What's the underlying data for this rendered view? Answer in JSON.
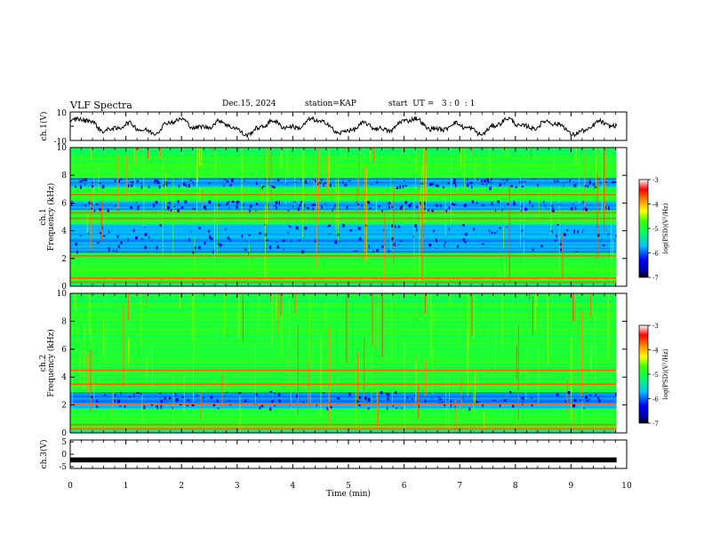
{
  "header": {
    "title": "VLF Spectra",
    "date": "Dec.15, 2024",
    "station": "station=KAP",
    "start_ut": "start  UT =   3 : 0  : 1"
  },
  "chart_data": [
    {
      "type": "line",
      "panel": "ch1-waveform",
      "ylabel": "ch.1(V)",
      "ylim": [
        -10,
        10
      ],
      "yticks": [
        "10",
        "-10"
      ],
      "xlim": [
        0,
        10
      ],
      "x_end": 9.82,
      "description_values": "noisy waveform oscillating roughly between -6 and +6 V"
    },
    {
      "type": "heatmap",
      "panel": "ch1-spectrogram",
      "ylabel": "ch.1\nFrequency (kHz)",
      "ylim": [
        0,
        10
      ],
      "yticks": [
        "0",
        "2",
        "4",
        "6",
        "8",
        "10"
      ],
      "xlim": [
        0,
        10
      ],
      "x_end": 9.82,
      "colorbar": {
        "label": "log(PSD)(V²/Hz)",
        "range": [
          -7,
          -3
        ],
        "ticks": [
          "-3",
          "-4",
          "-5",
          "-6",
          "-7"
        ]
      },
      "hot_lines_khz": [
        0.3,
        0.6,
        2.2,
        4.9,
        5.3,
        6.6
      ],
      "cool_bands_khz": [
        [
          2.5,
          4.5
        ],
        [
          5.5,
          6.2
        ],
        [
          7.2,
          7.8
        ]
      ]
    },
    {
      "type": "heatmap",
      "panel": "ch2-spectrogram",
      "ylabel": "ch.2\nFrequency (kHz)",
      "ylim": [
        0,
        10
      ],
      "yticks": [
        "0",
        "2",
        "4",
        "6",
        "8",
        "10"
      ],
      "xlim": [
        0,
        10
      ],
      "x_end": 9.82,
      "colorbar": {
        "label": "log(PSD)(V²/Hz)",
        "range": [
          -7,
          -3
        ],
        "ticks": [
          "-3",
          "-4",
          "-5",
          "-6",
          "-7"
        ]
      },
      "hot_lines_khz": [
        0.3,
        0.6,
        2.1,
        3.5,
        4.5
      ],
      "cool_bands_khz": [
        [
          1.8,
          3.0
        ]
      ]
    },
    {
      "type": "line",
      "panel": "ch3-waveform",
      "ylabel": "ch.3(V)",
      "ylim": [
        -5,
        5
      ],
      "yticks": [
        "5",
        "0",
        "-5"
      ],
      "xlim": [
        0,
        10
      ],
      "x_end": 9.82,
      "values_note": "flat thick trace near -2 V"
    }
  ],
  "xaxis": {
    "label": "Time (min)",
    "ticks": [
      "0",
      "1",
      "2",
      "3",
      "4",
      "5",
      "6",
      "7",
      "8",
      "9",
      "10"
    ]
  }
}
